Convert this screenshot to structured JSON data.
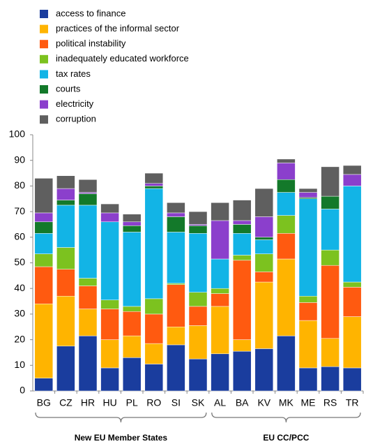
{
  "chart_data": {
    "type": "stacked_bar",
    "categories": [
      "BG",
      "CZ",
      "HR",
      "HU",
      "PL",
      "RO",
      "SI",
      "SK",
      "AL",
      "BA",
      "KV",
      "MK",
      "ME",
      "RS",
      "TR"
    ],
    "groups": [
      {
        "label": "New EU Member States",
        "count": 8
      },
      {
        "label": "EU CC/PCC",
        "count": 7
      }
    ],
    "series": [
      {
        "name": "access to finance",
        "color": "#1a3d9e",
        "values": [
          5,
          17.5,
          21.5,
          9,
          13,
          10.5,
          18,
          12.5,
          14.5,
          15.5,
          16.5,
          21.5,
          9,
          9.5,
          9
        ]
      },
      {
        "name": "practices of the informal sector",
        "color": "#ffb400",
        "values": [
          29,
          19.5,
          10.5,
          11,
          8.5,
          8,
          7,
          13,
          18.5,
          4.5,
          26,
          30,
          18.5,
          11,
          20
        ]
      },
      {
        "name": "political instability",
        "color": "#ff5a10",
        "values": [
          14.5,
          10.5,
          9,
          12,
          9.5,
          11.5,
          16.5,
          7.5,
          5,
          31,
          4,
          10,
          7,
          28.5,
          11.5
        ]
      },
      {
        "name": "inadequately educated workforce",
        "color": "#7cc21f",
        "values": [
          5,
          8.5,
          3,
          3.5,
          2,
          6,
          0.5,
          5.5,
          2,
          2,
          7,
          7,
          2.5,
          6,
          2
        ]
      },
      {
        "name": "tax rates",
        "color": "#12b4e6",
        "values": [
          8,
          16.5,
          28.5,
          30.5,
          29,
          43,
          20,
          23,
          11.5,
          8.5,
          5.5,
          9,
          38,
          16,
          37.5
        ]
      },
      {
        "name": "courts",
        "color": "#13792a",
        "values": [
          4.5,
          2,
          4.5,
          0,
          2.5,
          1,
          6,
          3,
          0,
          3.5,
          1,
          5,
          0.5,
          5,
          0
        ]
      },
      {
        "name": "electricity",
        "color": "#8b3fcc",
        "values": [
          3.5,
          4.5,
          0.5,
          3.5,
          1.5,
          1,
          1.5,
          0.5,
          15,
          1.5,
          8,
          6.5,
          2,
          0,
          4.5
        ]
      },
      {
        "name": "corruption",
        "color": "#5f5f5f",
        "values": [
          13.5,
          5,
          5,
          3.5,
          3,
          4,
          4,
          5,
          7,
          8,
          11,
          1.5,
          1.5,
          11.5,
          3.5
        ]
      }
    ],
    "ylim": [
      0,
      100
    ],
    "yticks": [
      0,
      10,
      20,
      30,
      40,
      50,
      60,
      70,
      80,
      90,
      100
    ],
    "grid": false
  }
}
